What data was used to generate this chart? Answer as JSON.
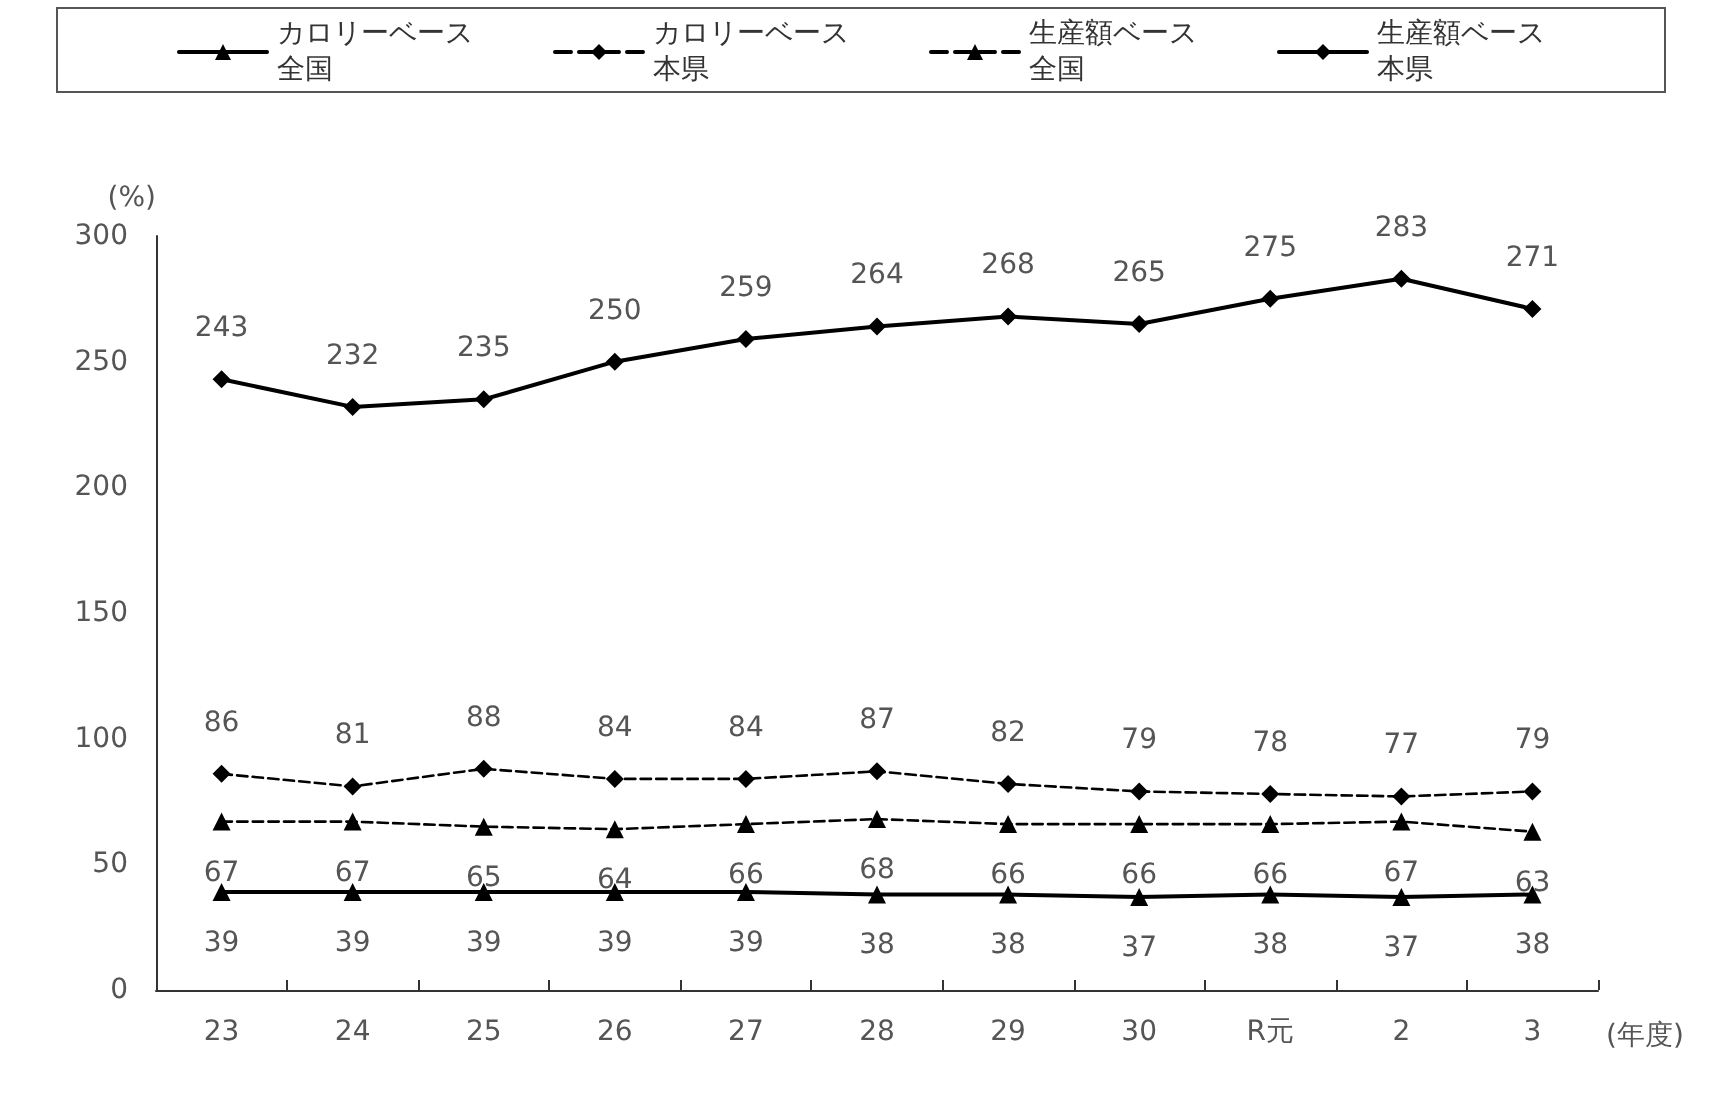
{
  "chart_data": {
    "type": "line",
    "ylabel": "(%)",
    "xlabel": "(年度)",
    "categories": [
      "23",
      "24",
      "25",
      "26",
      "27",
      "28",
      "29",
      "30",
      "R元",
      "2",
      "3"
    ],
    "series": [
      {
        "name": "カロリーベース全国",
        "color": "#000000",
        "marker": "triangle",
        "line_style": "solid",
        "values": [
          39,
          39,
          39,
          39,
          39,
          38,
          38,
          37,
          38,
          37,
          38
        ]
      },
      {
        "name": "カロリーベース本県",
        "color": "#000000",
        "marker": "diamond",
        "line_style": "dashed",
        "values": [
          86,
          81,
          88,
          84,
          84,
          87,
          82,
          79,
          78,
          77,
          79
        ]
      },
      {
        "name": "生産額ベース全国",
        "color": "#000000",
        "marker": "triangle",
        "line_style": "dashed",
        "values": [
          67,
          67,
          65,
          64,
          66,
          68,
          66,
          66,
          66,
          67,
          63
        ]
      },
      {
        "name": "生産額ベース本県",
        "color": "#000000",
        "marker": "diamond",
        "line_style": "solid",
        "values": [
          243,
          232,
          235,
          250,
          259,
          264,
          268,
          265,
          275,
          283,
          271
        ]
      }
    ],
    "ylim": [
      0,
      300
    ],
    "yticks": [
      0,
      50,
      100,
      150,
      200,
      250,
      300
    ],
    "data_labels": true,
    "grid": false,
    "legend": "top"
  }
}
